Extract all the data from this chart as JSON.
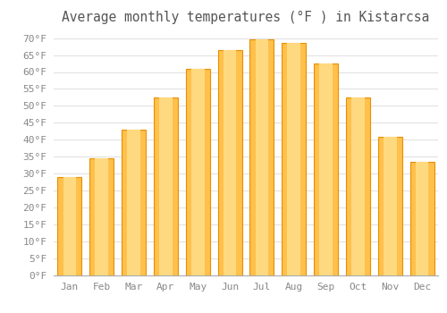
{
  "title": "Average monthly temperatures (°F ) in Kistarcsa",
  "months": [
    "Jan",
    "Feb",
    "Mar",
    "Apr",
    "May",
    "Jun",
    "Jul",
    "Aug",
    "Sep",
    "Oct",
    "Nov",
    "Dec"
  ],
  "values": [
    29.0,
    34.5,
    43.0,
    52.5,
    61.0,
    66.5,
    69.5,
    68.5,
    62.5,
    52.5,
    41.0,
    33.5
  ],
  "bar_color_face": "#FFC04C",
  "bar_color_edge": "#E89000",
  "background_color": "#ffffff",
  "grid_color": "#e0e0e0",
  "ylim": [
    0,
    72
  ],
  "yticks": [
    0,
    5,
    10,
    15,
    20,
    25,
    30,
    35,
    40,
    45,
    50,
    55,
    60,
    65,
    70
  ],
  "title_fontsize": 10.5,
  "tick_fontsize": 8,
  "font_family": "monospace"
}
